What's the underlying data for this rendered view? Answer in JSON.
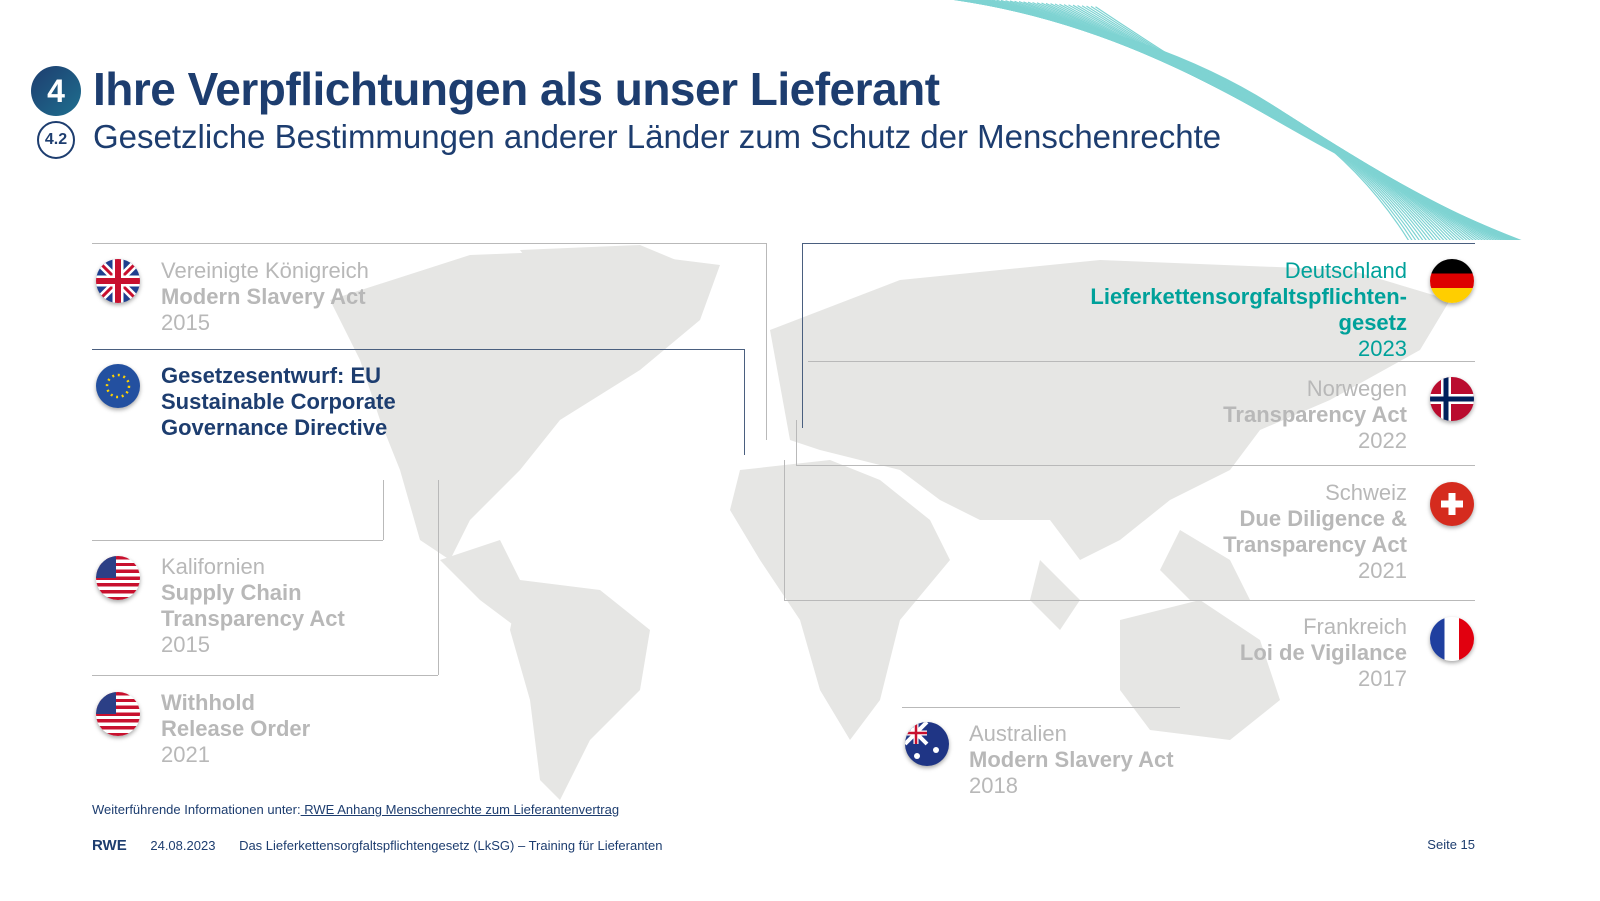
{
  "header": {
    "section_number": "4",
    "title": "Ihre Verpflichtungen als unser Lieferant",
    "subsection_number": "4.2",
    "subtitle": "Gesetzliche Bestimmungen anderer Länder zum Schutz der Menschenrechte"
  },
  "laws": {
    "uk": {
      "country": "Vereinigte Königreich",
      "law": "Modern Slavery Act",
      "year": "2015",
      "flag": "uk-flag"
    },
    "eu": {
      "law_line1": "Gesetzesentwurf: EU",
      "law_line2": "Sustainable Corporate",
      "law_line3": "Governance Directive",
      "flag": "eu-flag"
    },
    "california": {
      "country": "Kalifornien",
      "law_line1": "Supply Chain",
      "law_line2": "Transparency Act",
      "year": "2015",
      "flag": "us-flag"
    },
    "us": {
      "law_line1": "Withhold",
      "law_line2": "Release Order",
      "year": "2021",
      "flag": "us-flag"
    },
    "germany": {
      "country": "Deutschland",
      "law_line1": "Lieferkettensorgfaltspflichten-",
      "law_line2": "gesetz",
      "year": "2023",
      "flag": "germany-flag"
    },
    "norway": {
      "country": "Norwegen",
      "law": "Transparency Act",
      "year": "2022",
      "flag": "norway-flag"
    },
    "switzerland": {
      "country": "Schweiz",
      "law_line1": "Due Diligence &",
      "law_line2": "Transparency Act",
      "year": "2021",
      "flag": "switzerland-flag"
    },
    "france": {
      "country": "Frankreich",
      "law": "Loi de Vigilance",
      "year": "2017",
      "flag": "france-flag"
    },
    "australia": {
      "country": "Australien",
      "law": "Modern Slavery Act",
      "year": "2018",
      "flag": "australia-flag"
    }
  },
  "footer": {
    "info_prefix": "Weiterführende Informationen unter:",
    "info_link": " RWE Anhang Menschenrechte zum Lieferantenvertrag",
    "brand": "RWE",
    "date": "24.08.2023",
    "doc_title": "Das Lieferkettensorgfaltspflichtengesetz (LkSG) – Training für Lieferanten",
    "page": "Seite 15"
  },
  "colors": {
    "navy": "#1d3d6f",
    "teal": "#00a19a",
    "grey_text": "#b8b8b8",
    "map": "#e6e6e4"
  }
}
